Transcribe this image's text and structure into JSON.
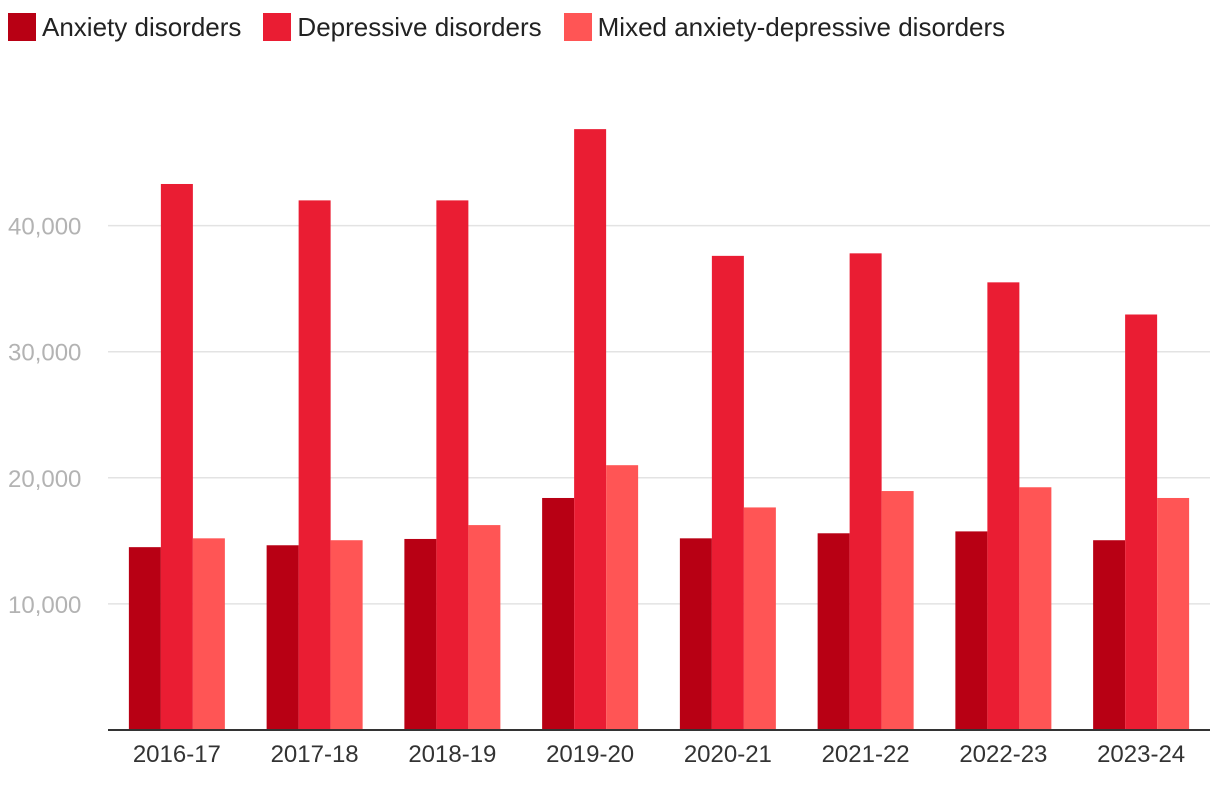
{
  "chart_data": {
    "type": "bar",
    "title": "",
    "xlabel": "",
    "ylabel": "",
    "categories": [
      "2016-17",
      "2017-18",
      "2018-19",
      "2019-20",
      "2020-21",
      "2021-22",
      "2022-23",
      "2023-24"
    ],
    "series": [
      {
        "name": "Anxiety disorders",
        "color": "#b80014",
        "values": [
          14500,
          14650,
          15150,
          18400,
          15200,
          15600,
          15750,
          15050
        ]
      },
      {
        "name": "Depressive disorders",
        "color": "#ea1d33",
        "values": [
          43300,
          42000,
          42000,
          47650,
          37600,
          37800,
          35500,
          32950
        ]
      },
      {
        "name": "Mixed anxiety-depressive disorders",
        "color": "#ff5555",
        "values": [
          15200,
          15050,
          16250,
          21000,
          17650,
          18950,
          19250,
          18400
        ]
      }
    ],
    "yticks": [
      10000,
      20000,
      30000,
      40000
    ],
    "ytick_labels": [
      "10,000",
      "20,000",
      "30,000",
      "40,000"
    ],
    "ylim": [
      0,
      50000
    ],
    "grid": true,
    "legend_position": "top-left"
  }
}
